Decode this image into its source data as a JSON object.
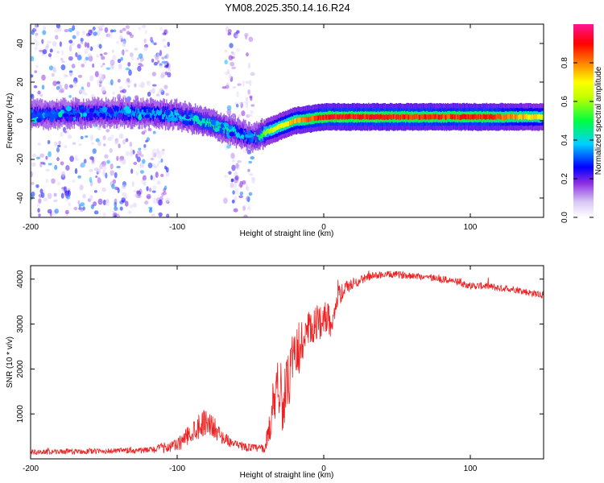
{
  "title": "YM08.2025.350.14.16.R24",
  "chart_data": [
    {
      "type": "heatmap",
      "xlabel": "Height of straight line (km)",
      "ylabel": "Frequency (Hz)",
      "xlim": [
        -200,
        150
      ],
      "ylim": [
        -50,
        50
      ],
      "x_ticks": [
        -200,
        -100,
        0,
        100
      ],
      "x_tick_labels": [
        "-200",
        "-100",
        "0",
        "100"
      ],
      "y_ticks": [
        -40,
        -20,
        0,
        20,
        40
      ],
      "y_tick_labels": [
        "-40",
        "-20",
        "0",
        "20",
        "40"
      ],
      "colorbar": {
        "label": "Normalized spectral amplitude",
        "range": [
          0,
          1
        ],
        "ticks": [
          0,
          0.2,
          0.4,
          0.6,
          0.8
        ],
        "tick_labels": [
          "0.0",
          "0.2",
          "0.4",
          "0.6",
          "0.8"
        ],
        "colors": [
          "#ffffff",
          "#8a2be2",
          "#0000ff",
          "#00d0ff",
          "#00ff40",
          "#ffff00",
          "#ff8000",
          "#ff0000",
          "#ff1493"
        ]
      },
      "ridge": {
        "x": [
          -200,
          -160,
          -130,
          -100,
          -90,
          -75,
          -60,
          -50,
          -45,
          -40,
          -30,
          -20,
          -10,
          0,
          20,
          50,
          80,
          110,
          150
        ],
        "freq_hz": [
          3,
          4,
          4,
          3,
          1,
          -2,
          -6,
          -9,
          -8,
          -6,
          -3,
          0,
          1,
          2,
          2,
          2,
          2,
          2,
          2
        ],
        "amplitude": [
          0.3,
          0.32,
          0.35,
          0.38,
          0.42,
          0.45,
          0.4,
          0.3,
          0.45,
          0.6,
          0.7,
          0.78,
          0.85,
          0.9,
          0.92,
          0.9,
          0.88,
          0.9,
          0.7
        ]
      },
      "noise_regions": [
        [
          -200,
          -105
        ],
        [
          -68,
          -48
        ]
      ]
    },
    {
      "type": "line",
      "xlabel": "Height of straight line (km)",
      "ylabel": "SNR (10 * v/v)",
      "xlim": [
        -200,
        150
      ],
      "ylim": [
        0,
        4300
      ],
      "x_ticks": [
        -200,
        -100,
        0,
        100
      ],
      "x_tick_labels": [
        "-200",
        "-100",
        "0",
        "100"
      ],
      "y_ticks": [
        1000,
        2000,
        3000,
        4000
      ],
      "y_tick_labels": [
        "1000",
        "2000",
        "3000",
        "4000"
      ],
      "color": "#ee2222",
      "series": [
        {
          "name": "SNR",
          "x": [
            -200,
            -150,
            -120,
            -100,
            -90,
            -85,
            -80,
            -75,
            -70,
            -60,
            -50,
            -40,
            -36,
            -32,
            -28,
            -25,
            -20,
            -15,
            -10,
            -5,
            0,
            5,
            10,
            15,
            20,
            30,
            40,
            50,
            60,
            70,
            80,
            90,
            100,
            110,
            120,
            130,
            140,
            150
          ],
          "y": [
            150,
            170,
            190,
            300,
            600,
            750,
            850,
            700,
            500,
            300,
            250,
            220,
            900,
            1800,
            1200,
            1600,
            2200,
            2600,
            2800,
            2950,
            3200,
            3050,
            3600,
            3800,
            3900,
            4050,
            4100,
            4100,
            4080,
            4050,
            4000,
            3950,
            3850,
            3850,
            3800,
            3780,
            3700,
            3650
          ],
          "noise": [
            60,
            60,
            70,
            150,
            250,
            300,
            300,
            250,
            150,
            100,
            90,
            90,
            500,
            700,
            600,
            650,
            600,
            600,
            500,
            450,
            400,
            350,
            250,
            150,
            120,
            90,
            80,
            80,
            80,
            80,
            80,
            80,
            80,
            80,
            80,
            80,
            80,
            80
          ]
        }
      ]
    }
  ]
}
